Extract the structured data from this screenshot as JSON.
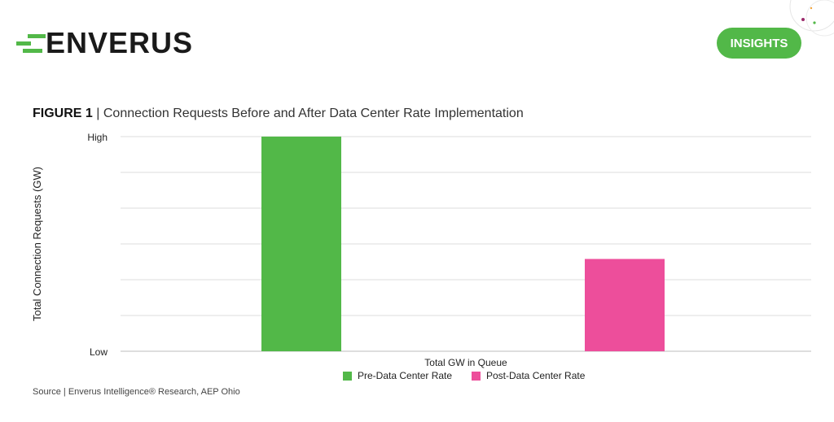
{
  "brand": {
    "logo_text": "ENVERUS",
    "badge_label": "INSIGHTS",
    "accent_color": "#52b848"
  },
  "figure": {
    "label": "FIGURE 1",
    "separator": "|",
    "title": "Connection Requests Before and After Data Center Rate Implementation"
  },
  "chart_data": {
    "type": "bar",
    "title": "Connection Requests Before and After Data Center Rate Implementation",
    "xlabel": "Total GW in Queue",
    "ylabel": "Total Connection Requests (GW)",
    "y_tick_labels": {
      "top": "High",
      "bottom": "Low"
    },
    "ylim": [
      0,
      100
    ],
    "grid": true,
    "gridline_count": 7,
    "legend_position": "bottom",
    "series": [
      {
        "name": "Pre-Data Center Rate",
        "value": 100,
        "color": "#52b848"
      },
      {
        "name": "Post-Data Center Rate",
        "value": 43,
        "color": "#ed4e9b"
      }
    ]
  },
  "source_text": "Source | Enverus Intelligence® Research, AEP Ohio"
}
